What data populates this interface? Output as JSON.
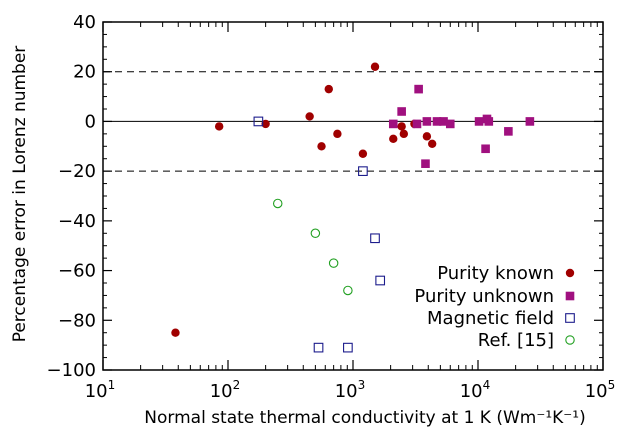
{
  "chart_data": {
    "type": "scatter",
    "xlabel": "Normal state thermal conductivity at 1 K (Wm⁻¹K⁻¹)",
    "ylabel": "Percentage error in Lorenz number",
    "x_scale": "log",
    "xlim": [
      10,
      100000
    ],
    "ylim": [
      -100,
      40
    ],
    "x_ticks": [
      {
        "value": 10,
        "base": "10",
        "exp": "1"
      },
      {
        "value": 100,
        "base": "10",
        "exp": "2"
      },
      {
        "value": 1000,
        "base": "10",
        "exp": "3"
      },
      {
        "value": 10000,
        "base": "10",
        "exp": "4"
      },
      {
        "value": 100000,
        "base": "10",
        "exp": "5"
      }
    ],
    "y_ticks": [
      {
        "value": 40,
        "label": "40"
      },
      {
        "value": 20,
        "label": "20"
      },
      {
        "value": 0,
        "label": "0"
      },
      {
        "value": -20,
        "label": "−20"
      },
      {
        "value": -40,
        "label": "−40"
      },
      {
        "value": -60,
        "label": "−60"
      },
      {
        "value": -80,
        "label": "−80"
      },
      {
        "value": -100,
        "label": "−100"
      }
    ],
    "reference_lines": [
      {
        "y": 20,
        "style": "dashed"
      },
      {
        "y": 0,
        "style": "solid"
      },
      {
        "y": -20,
        "style": "dashed"
      }
    ],
    "legend_position": "bottom-right",
    "series": [
      {
        "name": "Purity known",
        "marker": "filled-circle",
        "color": "#a00000",
        "points": [
          [
            38,
            -85
          ],
          [
            85,
            -2
          ],
          [
            200,
            -1
          ],
          [
            450,
            2
          ],
          [
            560,
            -10
          ],
          [
            640,
            13
          ],
          [
            750,
            -5
          ],
          [
            1200,
            -13
          ],
          [
            1500,
            22
          ],
          [
            2100,
            -7
          ],
          [
            2450,
            -2
          ],
          [
            2550,
            -5
          ],
          [
            3100,
            -1
          ],
          [
            3900,
            -6
          ],
          [
            4300,
            -9
          ]
        ]
      },
      {
        "name": "Purity unknown",
        "marker": "filled-square",
        "color": "#a0107f",
        "points": [
          [
            2100,
            -1
          ],
          [
            2450,
            4
          ],
          [
            3250,
            -1
          ],
          [
            3350,
            13
          ],
          [
            3800,
            -17
          ],
          [
            3900,
            0
          ],
          [
            4700,
            0
          ],
          [
            5300,
            0
          ],
          [
            6000,
            -1
          ],
          [
            10200,
            0
          ],
          [
            11500,
            -11
          ],
          [
            11800,
            1
          ],
          [
            12200,
            0
          ],
          [
            17500,
            -4
          ],
          [
            26000,
            0
          ]
        ]
      },
      {
        "name": "Magnetic field",
        "marker": "open-square",
        "color": "#1c1c8c",
        "points": [
          [
            175,
            0
          ],
          [
            1200,
            -20
          ],
          [
            1500,
            -47
          ],
          [
            1650,
            -64
          ],
          [
            530,
            -91
          ],
          [
            910,
            -91
          ]
        ]
      },
      {
        "name": "Ref. [15]",
        "marker": "open-circle",
        "color": "#22a022",
        "points": [
          [
            250,
            -33
          ],
          [
            500,
            -45
          ],
          [
            700,
            -57
          ],
          [
            910,
            -68
          ]
        ]
      }
    ]
  }
}
